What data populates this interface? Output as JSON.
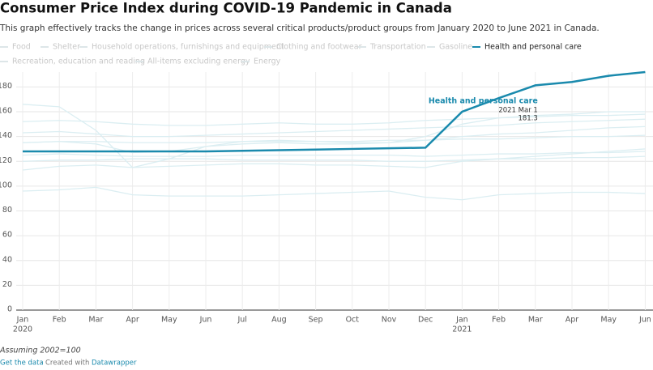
{
  "chart_data": {
    "type": "line",
    "title": "Consumer Price Index during COVID-19 Pandemic in Canada",
    "subtitle": "This graph effectively tracks the change in prices across several critical products/product groups from January 2020 to June 2021 in Canada.",
    "categories": [
      "Jan",
      "Feb",
      "Mar",
      "Apr",
      "May",
      "Jun",
      "Jul",
      "Aug",
      "Sep",
      "Oct",
      "Nov",
      "Dec",
      "Jan",
      "Feb",
      "Mar",
      "Apr",
      "May",
      "Jun"
    ],
    "category_years": [
      "2020",
      null,
      null,
      null,
      null,
      null,
      null,
      null,
      null,
      null,
      null,
      null,
      "2021",
      null,
      null,
      null,
      null,
      null
    ],
    "ylim": [
      0,
      192
    ],
    "yticks": [
      0,
      20,
      40,
      60,
      80,
      100,
      120,
      140,
      160,
      180
    ],
    "grid": true,
    "series": [
      {
        "name": "Food",
        "color": "#dbeef2",
        "values": [
          152,
          153,
          152,
          150,
          149,
          149,
          150,
          151,
          150,
          150,
          151,
          153,
          154,
          155,
          156,
          157,
          157,
          158
        ]
      },
      {
        "name": "Shelter",
        "color": "#dbeef2",
        "values": [
          143,
          144,
          142,
          140,
          140,
          141,
          142,
          143,
          144,
          145,
          146,
          147,
          148,
          149,
          151,
          152,
          153,
          154
        ]
      },
      {
        "name": "Household operations, furnishings and equipment",
        "color": "#dbeef2",
        "values": [
          120,
          121,
          121,
          122,
          122,
          122,
          121,
          121,
          121,
          121,
          120,
          120,
          121,
          122,
          122,
          123,
          123,
          124
        ]
      },
      {
        "name": "Clothing and footwear",
        "color": "#dbeef2",
        "values": [
          113,
          116,
          117,
          115,
          116,
          117,
          118,
          118,
          117,
          117,
          116,
          115,
          120,
          122,
          124,
          126,
          128,
          130
        ]
      },
      {
        "name": "Transportation",
        "color": "#dbeef2",
        "values": [
          135,
          136,
          134,
          127,
          128,
          132,
          134,
          135,
          134,
          134,
          135,
          137,
          140,
          142,
          143,
          145,
          147,
          148
        ]
      },
      {
        "name": "Gasoline",
        "color": "#dbeef2",
        "values": [
          96,
          97,
          99,
          93,
          92,
          92,
          92,
          93,
          94,
          95,
          96,
          91,
          89,
          93,
          94,
          95,
          95,
          94
        ]
      },
      {
        "name": "Health and personal care",
        "color": "#1a8aad",
        "values": [
          128,
          128,
          128,
          128,
          128,
          128,
          128.5,
          129,
          129.5,
          130,
          130.5,
          131,
          160,
          171,
          181.3,
          184,
          189,
          192
        ]
      },
      {
        "name": "Recreation, education and reading",
        "color": "#dbeef2",
        "values": [
          125,
          126,
          125,
          124,
          124,
          124,
          125,
          125,
          125,
          125,
          125,
          124,
          125,
          126,
          126,
          127,
          127,
          128
        ]
      },
      {
        "name": "All-items excluding energy",
        "color": "#dbeef2",
        "values": [
          135,
          136,
          136,
          135,
          135,
          135,
          136,
          136,
          136,
          136,
          137,
          137,
          138,
          138,
          139,
          140,
          140,
          141
        ]
      },
      {
        "name": "Energy",
        "color": "#dbeef2",
        "values": [
          166,
          164,
          145,
          115,
          122,
          132,
          136,
          137,
          136,
          135,
          135,
          140,
          150,
          155,
          157,
          158,
          160,
          160
        ]
      }
    ],
    "highlight": 6,
    "annotation": {
      "title": "Health and personal care",
      "date": "2021 Mar 1",
      "value": 181.3,
      "index": 14
    },
    "note": "Assuming 2002=100",
    "footer": {
      "link": "Get the data",
      "separator": "·",
      "created_with": "Created with",
      "tool": "Datawrapper"
    }
  }
}
